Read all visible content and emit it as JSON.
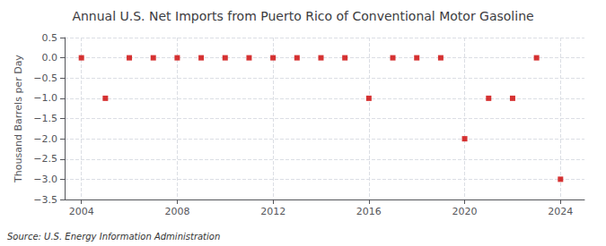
{
  "chart_data": {
    "type": "scatter",
    "title": "Annual U.S. Net Imports from Puerto Rico of Conventional Motor Gasoline",
    "ylabel": "Thousand Barrels per Day",
    "source": "Source: U.S. Energy Information Administration",
    "x": [
      2004,
      2005,
      2006,
      2007,
      2008,
      2009,
      2010,
      2011,
      2012,
      2013,
      2014,
      2015,
      2016,
      2017,
      2018,
      2019,
      2020,
      2021,
      2022,
      2023,
      2024
    ],
    "values": [
      0.0,
      -1.0,
      0.0,
      0.0,
      0.0,
      0.0,
      0.0,
      0.0,
      0.0,
      0.0,
      0.0,
      0.0,
      -1.0,
      0.0,
      0.0,
      0.0,
      -2.0,
      -1.0,
      -1.0,
      0.0,
      -3.0
    ],
    "color": "#cc0000",
    "marker": "square",
    "ylim": [
      -3.5,
      0.5
    ],
    "yticks": [
      0.5,
      {
        "value": 0.0,
        "label": "0.0"
      },
      {
        "value": -0.5,
        "label": "−0.5"
      },
      {
        "value": -1.0,
        "label": "−1.0"
      },
      {
        "value": -1.5,
        "label": "−1.5"
      },
      {
        "value": -2.0,
        "label": "−2.0"
      },
      {
        "value": -2.5,
        "label": "−2.5"
      },
      {
        "value": -3.0,
        "label": "−3.0"
      },
      {
        "value": -3.5,
        "label": "−3.5"
      }
    ],
    "xlim": [
      2003.3,
      2025.0
    ],
    "xticks": [
      2004,
      2008,
      2012,
      2016,
      2020,
      2024
    ],
    "grid": true
  }
}
